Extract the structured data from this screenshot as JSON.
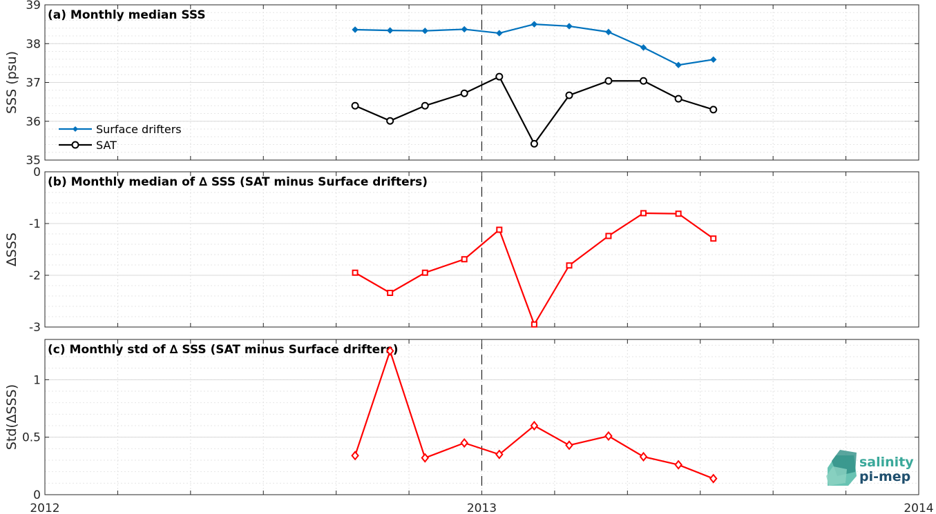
{
  "chart_data": [
    {
      "panel": "a",
      "type": "line",
      "title": "(a) Monthly median SSS",
      "ylabel": "SSS (psu)",
      "ylim": [
        35,
        39
      ],
      "yticks": [
        "35",
        "36",
        "37",
        "38",
        "39"
      ],
      "legend_position": "left-middle",
      "grid": true,
      "x": [
        2012.71,
        2012.79,
        2012.87,
        2012.96,
        2013.04,
        2013.12,
        2013.2,
        2013.29,
        2013.37,
        2013.45,
        2013.53
      ],
      "series": [
        {
          "name": "Surface drifters",
          "color": "#0072BD",
          "marker": "diamond-filled",
          "values": [
            38.36,
            38.34,
            38.33,
            38.37,
            38.27,
            38.5,
            38.45,
            38.3,
            37.9,
            37.45,
            37.59
          ]
        },
        {
          "name": "SAT",
          "color": "#000000",
          "marker": "circle",
          "values": [
            36.4,
            36.01,
            36.4,
            36.72,
            37.15,
            35.42,
            36.67,
            37.04,
            37.04,
            36.58,
            36.3
          ]
        }
      ]
    },
    {
      "panel": "b",
      "type": "line",
      "title": "(b) Monthly median of ∆ SSS (SAT minus Surface drifters)",
      "ylabel": "∆SSS",
      "ylim": [
        -3,
        0
      ],
      "yticks": [
        "-3",
        "-2",
        "-1",
        "0"
      ],
      "grid": true,
      "zero_line": "dashed",
      "x": [
        2012.71,
        2012.79,
        2012.87,
        2012.96,
        2013.04,
        2013.12,
        2013.2,
        2013.29,
        2013.37,
        2013.45,
        2013.53
      ],
      "series": [
        {
          "color": "#FF0000",
          "marker": "square",
          "values": [
            -1.95,
            -2.34,
            -1.95,
            -1.69,
            -1.12,
            -2.95,
            -1.81,
            -1.24,
            -0.8,
            -0.81,
            -1.29
          ]
        }
      ]
    },
    {
      "panel": "c",
      "type": "line",
      "title": "(c) Monthly std of ∆ SSS (SAT minus Surface drifters)",
      "ylabel": "Std(∆SSS)",
      "ylim": [
        0,
        1.35
      ],
      "yticks": [
        "0",
        "0.5",
        "1"
      ],
      "grid": true,
      "x": [
        2012.71,
        2012.79,
        2012.87,
        2012.96,
        2013.04,
        2013.12,
        2013.2,
        2013.29,
        2013.37,
        2013.45,
        2013.53
      ],
      "series": [
        {
          "color": "#FF0000",
          "marker": "diamond-open",
          "values": [
            0.34,
            1.25,
            0.32,
            0.45,
            0.35,
            0.6,
            0.43,
            0.51,
            0.33,
            0.26,
            0.14
          ]
        }
      ]
    }
  ],
  "shared_x": {
    "xlim": [
      2012,
      2014
    ],
    "xticks": [
      "2012",
      "2013",
      "2014"
    ],
    "vertical_dashed_at": 2013
  },
  "logo": {
    "line1": "salinity",
    "line2": "pi-mep",
    "color1": "#3aa89a",
    "color2": "#1f4f6e"
  }
}
